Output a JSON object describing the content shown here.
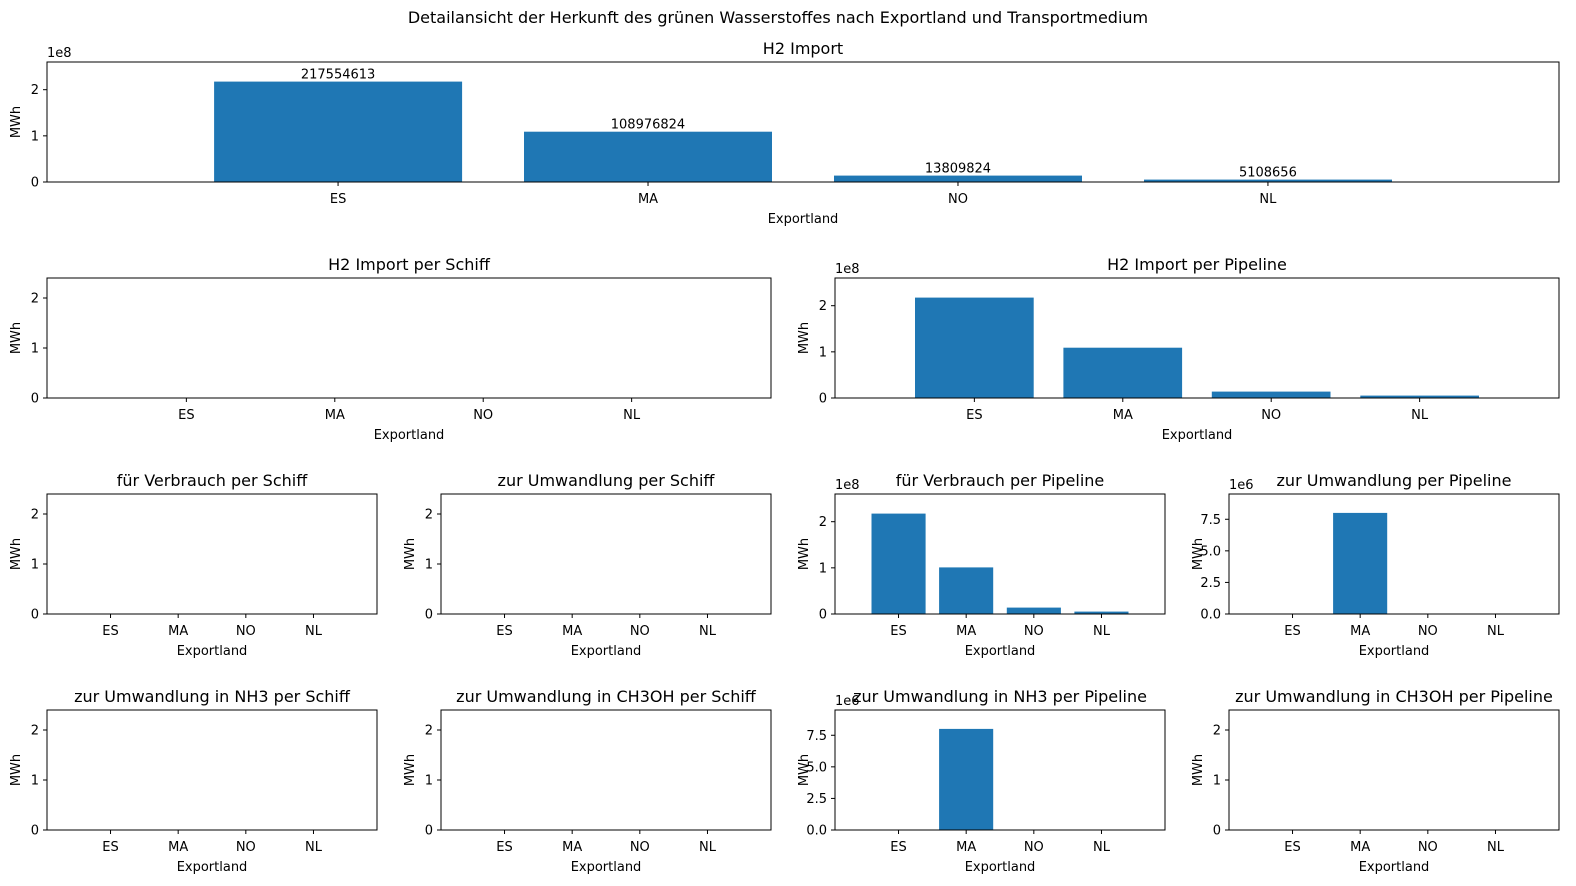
{
  "suptitle": "Detailansicht der Herkunft des grünen Wasserstoffes nach Exportland und Transportmedium",
  "colors": {
    "bar": "#1f77b4",
    "axis": "#000000",
    "background": "#ffffff"
  },
  "chart_data": [
    {
      "type": "bar",
      "title": "H2 Import",
      "xlabel": "Exportland",
      "ylabel": "MWh",
      "categories": [
        "ES",
        "MA",
        "NO",
        "NL"
      ],
      "values": [
        217554613,
        108976824,
        13809824,
        5108656
      ],
      "data_labels": [
        "217554613",
        "108976824",
        "13809824",
        "5108656"
      ],
      "ylim": [
        0,
        260000000
      ],
      "yticks": [
        0,
        100000000,
        200000000
      ],
      "ytick_labels": [
        "0",
        "1",
        "2"
      ],
      "offset_label": "1e8"
    },
    {
      "type": "bar",
      "title": "H2 Import per Schiff",
      "xlabel": "Exportland",
      "ylabel": "MWh",
      "categories": [
        "ES",
        "MA",
        "NO",
        "NL"
      ],
      "values": [
        0,
        0,
        0,
        0
      ],
      "ylim": [
        0,
        2.4
      ],
      "yticks": [
        0,
        1,
        2
      ],
      "ytick_labels": [
        "0",
        "1",
        "2"
      ]
    },
    {
      "type": "bar",
      "title": "H2 Import per Pipeline",
      "xlabel": "Exportland",
      "ylabel": "MWh",
      "categories": [
        "ES",
        "MA",
        "NO",
        "NL"
      ],
      "values": [
        217554613,
        108976824,
        13809824,
        5108656
      ],
      "ylim": [
        0,
        260000000
      ],
      "yticks": [
        0,
        100000000,
        200000000
      ],
      "ytick_labels": [
        "0",
        "1",
        "2"
      ],
      "offset_label": "1e8"
    },
    {
      "type": "bar",
      "title": "für Verbrauch per Schiff",
      "xlabel": "Exportland",
      "ylabel": "MWh",
      "categories": [
        "ES",
        "MA",
        "NO",
        "NL"
      ],
      "values": [
        0,
        0,
        0,
        0
      ],
      "ylim": [
        0,
        2.4
      ],
      "yticks": [
        0,
        1,
        2
      ],
      "ytick_labels": [
        "0",
        "1",
        "2"
      ]
    },
    {
      "type": "bar",
      "title": "zur Umwandlung per Schiff",
      "xlabel": "Exportland",
      "ylabel": "MWh",
      "categories": [
        "ES",
        "MA",
        "NO",
        "NL"
      ],
      "values": [
        0,
        0,
        0,
        0
      ],
      "ylim": [
        0,
        2.4
      ],
      "yticks": [
        0,
        1,
        2
      ],
      "ytick_labels": [
        "0",
        "1",
        "2"
      ]
    },
    {
      "type": "bar",
      "title": "für Verbrauch per Pipeline",
      "xlabel": "Exportland",
      "ylabel": "MWh",
      "categories": [
        "ES",
        "MA",
        "NO",
        "NL"
      ],
      "values": [
        217554613,
        100976824,
        13809824,
        5108656
      ],
      "ylim": [
        0,
        260000000
      ],
      "yticks": [
        0,
        100000000,
        200000000
      ],
      "ytick_labels": [
        "0",
        "1",
        "2"
      ],
      "offset_label": "1e8"
    },
    {
      "type": "bar",
      "title": "zur Umwandlung per Pipeline",
      "xlabel": "Exportland",
      "ylabel": "MWh",
      "categories": [
        "ES",
        "MA",
        "NO",
        "NL"
      ],
      "values": [
        0,
        8000000,
        0,
        0
      ],
      "ylim": [
        0,
        9500000
      ],
      "yticks": [
        0,
        2500000,
        5000000,
        7500000
      ],
      "ytick_labels": [
        "0.0",
        "2.5",
        "5.0",
        "7.5"
      ],
      "offset_label": "1e6"
    },
    {
      "type": "bar",
      "title": "zur Umwandlung in NH3 per Schiff",
      "xlabel": "Exportland",
      "ylabel": "MWh",
      "categories": [
        "ES",
        "MA",
        "NO",
        "NL"
      ],
      "values": [
        0,
        0,
        0,
        0
      ],
      "ylim": [
        0,
        2.4
      ],
      "yticks": [
        0,
        1,
        2
      ],
      "ytick_labels": [
        "0",
        "1",
        "2"
      ]
    },
    {
      "type": "bar",
      "title": "zur Umwandlung in CH3OH per Schiff",
      "xlabel": "Exportland",
      "ylabel": "MWh",
      "categories": [
        "ES",
        "MA",
        "NO",
        "NL"
      ],
      "values": [
        0,
        0,
        0,
        0
      ],
      "ylim": [
        0,
        2.4
      ],
      "yticks": [
        0,
        1,
        2
      ],
      "ytick_labels": [
        "0",
        "1",
        "2"
      ]
    },
    {
      "type": "bar",
      "title": "zur Umwandlung in NH3 per Pipeline",
      "xlabel": "Exportland",
      "ylabel": "MWh",
      "categories": [
        "ES",
        "MA",
        "NO",
        "NL"
      ],
      "values": [
        0,
        8000000,
        0,
        0
      ],
      "ylim": [
        0,
        9500000
      ],
      "yticks": [
        0,
        2500000,
        5000000,
        7500000
      ],
      "ytick_labels": [
        "0.0",
        "2.5",
        "5.0",
        "7.5"
      ],
      "offset_label": "1e6"
    },
    {
      "type": "bar",
      "title": "zur Umwandlung in CH3OH per Pipeline",
      "xlabel": "Exportland",
      "ylabel": "MWh",
      "categories": [
        "ES",
        "MA",
        "NO",
        "NL"
      ],
      "values": [
        0,
        0,
        0,
        0
      ],
      "ylim": [
        0,
        2.4
      ],
      "yticks": [
        0,
        1,
        2
      ],
      "ytick_labels": [
        "0",
        "1",
        "2"
      ]
    }
  ]
}
